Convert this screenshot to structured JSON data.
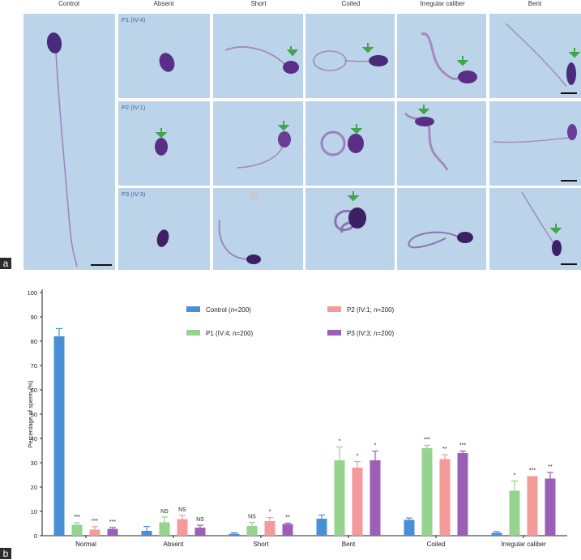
{
  "panel_a": {
    "letter": "a",
    "column_headers": [
      "Control",
      "Absent",
      "Short",
      "Coiled",
      "Irregular caliber",
      "Bent"
    ],
    "row_labels": [
      "P1 (IV:4)",
      "P2 (IV:1)",
      "P3 (IV:3)"
    ]
  },
  "panel_b": {
    "letter": "b"
  },
  "chart_data": {
    "type": "bar",
    "title": "",
    "xlabel": "",
    "ylabel": "Percentage of sperm (%)",
    "ylim": [
      0,
      100
    ],
    "yticks": [
      0,
      10,
      20,
      30,
      40,
      50,
      60,
      70,
      80,
      90,
      100
    ],
    "categories": [
      "Normal",
      "Absent",
      "Short",
      "Bent",
      "Coiled",
      "Irregular caliber"
    ],
    "series": [
      {
        "name": "Control (n=200)",
        "legend_prefix": "Control (",
        "legend_n": "n",
        "legend_suffix": "=200)",
        "color": "#4a8fd6",
        "values": [
          82,
          2,
          0.8,
          7,
          6.5,
          1.2
        ],
        "errors": [
          3.2,
          1.8,
          0.4,
          1.5,
          0.8,
          0.5
        ],
        "sig": [
          "",
          "",
          "",
          "",
          "",
          ""
        ]
      },
      {
        "name": "P1 (IV:4; n=200)",
        "legend_prefix": "P1 (IV:4; ",
        "legend_n": "n",
        "legend_suffix": "=200)",
        "color": "#95d38f",
        "values": [
          4.5,
          5.5,
          4,
          31,
          36,
          18.5
        ],
        "errors": [
          0.8,
          2.2,
          1.5,
          5.5,
          1.2,
          4
        ],
        "sig": [
          "***",
          "NS",
          "NS",
          "*",
          "***",
          "*"
        ]
      },
      {
        "name": "P2 (IV:1; n=200)",
        "legend_prefix": "P2 (IV:1; ",
        "legend_n": "n",
        "legend_suffix": "=200)",
        "color": "#f39a9a",
        "values": [
          2.5,
          6.8,
          6,
          28,
          31.5,
          24.5
        ],
        "errors": [
          1.2,
          1.5,
          1.5,
          2.5,
          1.8,
          0
        ],
        "sig": [
          "***",
          "NS",
          "*",
          "*",
          "**",
          "***"
        ]
      },
      {
        "name": "P3 (IV:3; n=200)",
        "legend_prefix": "P3 (IV:3; ",
        "legend_n": "n",
        "legend_suffix": "=200)",
        "color": "#9b5fb5",
        "values": [
          2.8,
          3.3,
          4.8,
          31,
          34,
          23.5
        ],
        "errors": [
          0.6,
          1,
          0.4,
          3.8,
          0.8,
          2.5
        ],
        "sig": [
          "***",
          "NS",
          "**",
          "*",
          "***",
          "**"
        ]
      }
    ],
    "legend": "top-right"
  }
}
